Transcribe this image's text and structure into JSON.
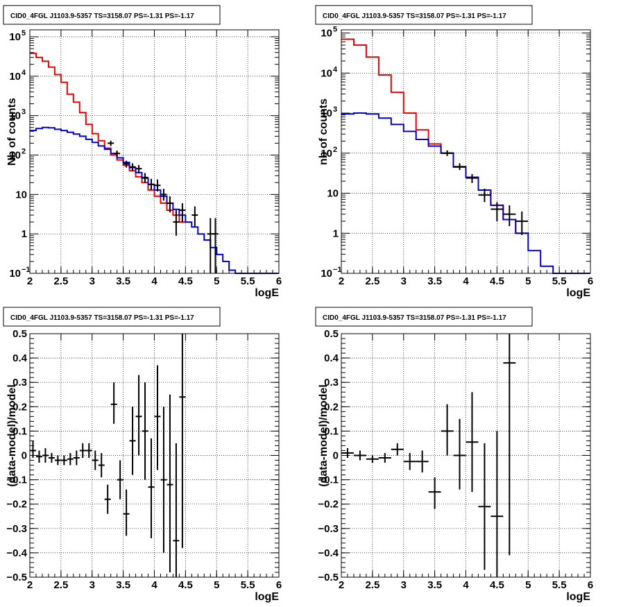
{
  "chart_data": [
    {
      "id": "tl",
      "type": "line",
      "title": "CID0_4FGL J1103.9-5357 TS=3158.07 PS=-1.31 PS=-1.17",
      "xlabel": "logE",
      "ylabel": "Nb of counts",
      "xlim": [
        2,
        6
      ],
      "ylim": [
        0.1,
        150000
      ],
      "yscale": "log",
      "grid": true,
      "x_ticks": [
        "2",
        "2.5",
        "3",
        "3.5",
        "4",
        "4.5",
        "5",
        "5.5",
        "6"
      ],
      "y_ticks": [
        {
          "value": 0.1,
          "label": "10",
          "exp": "−1"
        },
        {
          "value": 1,
          "label": "1",
          "exp": ""
        },
        {
          "value": 10,
          "label": "10",
          "exp": ""
        },
        {
          "value": 100,
          "label": "10",
          "exp": "2"
        },
        {
          "value": 1000,
          "label": "10",
          "exp": "3"
        },
        {
          "value": 10000,
          "label": "10",
          "exp": "4"
        },
        {
          "value": 100000,
          "label": "10",
          "exp": "5"
        }
      ],
      "series": [
        {
          "color": "#ee0000",
          "style": "step",
          "edges": [
            2.0,
            2.1,
            2.2,
            2.3,
            2.4,
            2.5,
            2.6,
            2.7,
            2.8,
            2.9,
            3.0,
            3.1,
            3.2,
            3.3,
            3.4,
            3.5,
            3.6,
            3.7,
            3.8,
            3.9,
            4.0,
            4.1,
            4.2,
            4.3,
            4.4,
            4.5
          ],
          "values": [
            38000,
            30000,
            24000,
            17000,
            11000,
            7000,
            3500,
            2200,
            1200,
            600,
            350,
            230,
            150,
            100,
            75,
            55,
            40,
            28,
            20,
            13,
            9,
            6,
            4,
            3,
            2
          ]
        },
        {
          "color": "#0000cc",
          "style": "step",
          "edges": [
            2.0,
            2.1,
            2.2,
            2.3,
            2.4,
            2.5,
            2.6,
            2.7,
            2.8,
            2.9,
            3.0,
            3.1,
            3.2,
            3.3,
            3.4,
            3.5,
            3.6,
            3.7,
            3.8,
            3.9,
            4.0,
            4.1,
            4.2,
            4.3,
            4.4,
            4.5,
            4.6,
            4.7,
            4.8,
            4.9,
            5.0,
            5.1,
            5.2,
            5.3,
            5.4,
            5.5,
            5.6,
            5.7,
            5.8,
            5.9,
            6.0
          ],
          "values": [
            420,
            470,
            500,
            490,
            450,
            420,
            380,
            340,
            300,
            250,
            210,
            170,
            140,
            110,
            85,
            65,
            48,
            36,
            26,
            18,
            13,
            9,
            6,
            4.2,
            3,
            2,
            1.5,
            1,
            0.7,
            0.45,
            0.3,
            0.2,
            0.12,
            0.1,
            0.1,
            0.1,
            0.1,
            0.1,
            0.1,
            0.1
          ]
        }
      ],
      "points": [
        {
          "x": 3.3,
          "y": 200,
          "dx": 0.05,
          "ylo": 170,
          "yhi": 230
        },
        {
          "x": 3.4,
          "y": 110,
          "dx": 0.05,
          "ylo": 90,
          "yhi": 130
        },
        {
          "x": 3.55,
          "y": 60,
          "dx": 0.05,
          "ylo": 48,
          "yhi": 72
        },
        {
          "x": 3.65,
          "y": 50,
          "dx": 0.05,
          "ylo": 40,
          "yhi": 62
        },
        {
          "x": 3.75,
          "y": 45,
          "dx": 0.05,
          "ylo": 34,
          "yhi": 56
        },
        {
          "x": 3.85,
          "y": 27,
          "dx": 0.05,
          "ylo": 20,
          "yhi": 35
        },
        {
          "x": 3.95,
          "y": 18,
          "dx": 0.05,
          "ylo": 13,
          "yhi": 25
        },
        {
          "x": 4.05,
          "y": 17,
          "dx": 0.05,
          "ylo": 12,
          "yhi": 24
        },
        {
          "x": 4.15,
          "y": 10,
          "dx": 0.05,
          "ylo": 7,
          "yhi": 14
        },
        {
          "x": 4.25,
          "y": 6,
          "dx": 0.05,
          "ylo": 3.5,
          "yhi": 9
        },
        {
          "x": 4.35,
          "y": 2,
          "dx": 0.05,
          "ylo": 0.9,
          "yhi": 4
        },
        {
          "x": 4.45,
          "y": 4,
          "dx": 0.05,
          "ylo": 2,
          "yhi": 6
        },
        {
          "x": 4.65,
          "y": 3,
          "dx": 0.05,
          "ylo": 1.5,
          "yhi": 5
        },
        {
          "x": 4.9,
          "y": 1,
          "dx": 0.05,
          "ylo": 0.1,
          "yhi": 2.5
        },
        {
          "x": 4.98,
          "y": 1,
          "dx": 0.05,
          "ylo": 0.1,
          "yhi": 2.5
        }
      ]
    },
    {
      "id": "tr",
      "type": "line",
      "title": "CID0_4FGL J1103.9-5357 TS=3158.07 PS=-1.31 PS=-1.17",
      "xlabel": "logE",
      "ylabel": "nb of counts",
      "xlim": [
        2,
        6
      ],
      "ylim": [
        0.1,
        120000
      ],
      "yscale": "log",
      "grid": true,
      "x_ticks": [
        "2",
        "2.5",
        "3",
        "3.5",
        "4",
        "4.5",
        "5",
        "5.5",
        "6"
      ],
      "y_ticks": [
        {
          "value": 0.1,
          "label": "10",
          "exp": "−1"
        },
        {
          "value": 1,
          "label": "1",
          "exp": ""
        },
        {
          "value": 10,
          "label": "10",
          "exp": ""
        },
        {
          "value": 100,
          "label": "10",
          "exp": "2"
        },
        {
          "value": 1000,
          "label": "10",
          "exp": "3"
        },
        {
          "value": 10000,
          "label": "10",
          "exp": "4"
        },
        {
          "value": 100000,
          "label": "10",
          "exp": "5"
        }
      ],
      "series": [
        {
          "color": "#ee0000",
          "style": "step",
          "edges": [
            2.0,
            2.2,
            2.4,
            2.6,
            2.8,
            3.0,
            3.2,
            3.4,
            3.6,
            3.8,
            4.0,
            4.2,
            4.4,
            4.6,
            4.8,
            5.0
          ],
          "values": [
            70000,
            50000,
            25000,
            9000,
            3300,
            1000,
            380,
            170,
            100,
            45,
            25,
            12,
            5,
            2.2,
            1
          ]
        },
        {
          "color": "#0000cc",
          "style": "step",
          "edges": [
            2.0,
            2.2,
            2.4,
            2.6,
            2.8,
            3.0,
            3.2,
            3.4,
            3.6,
            3.8,
            4.0,
            4.2,
            4.4,
            4.6,
            4.8,
            5.0,
            5.2,
            5.4,
            5.6,
            5.8,
            6.0
          ],
          "values": [
            950,
            1000,
            950,
            750,
            520,
            350,
            220,
            150,
            100,
            45,
            25,
            12,
            5,
            2.2,
            1,
            0.37,
            0.15,
            0.1,
            0.1,
            0.1
          ]
        }
      ],
      "points": [
        {
          "x": 3.7,
          "y": 100,
          "dx": 0.1,
          "ylo": 85,
          "yhi": 118
        },
        {
          "x": 3.9,
          "y": 46,
          "dx": 0.1,
          "ylo": 38,
          "yhi": 56
        },
        {
          "x": 4.1,
          "y": 24,
          "dx": 0.1,
          "ylo": 18,
          "yhi": 30
        },
        {
          "x": 4.3,
          "y": 9,
          "dx": 0.1,
          "ylo": 6,
          "yhi": 13
        },
        {
          "x": 4.5,
          "y": 4,
          "dx": 0.1,
          "ylo": 2,
          "yhi": 6
        },
        {
          "x": 4.7,
          "y": 3,
          "dx": 0.1,
          "ylo": 1.5,
          "yhi": 5
        },
        {
          "x": 4.9,
          "y": 2,
          "dx": 0.1,
          "ylo": 0.9,
          "yhi": 3.5
        }
      ]
    },
    {
      "id": "bl",
      "type": "scatter",
      "title": "CID0_4FGL J1103.9-5357 TS=3158.07 PS=-1.31 PS=-1.17",
      "xlabel": "logE",
      "ylabel": "(data-model)/model",
      "xlim": [
        2,
        6
      ],
      "ylim": [
        -0.5,
        0.5
      ],
      "yscale": "linear",
      "grid": true,
      "x_ticks": [
        "2",
        "2.5",
        "3",
        "3.5",
        "4",
        "4.5",
        "5",
        "5.5",
        "6"
      ],
      "y_ticks": [
        {
          "value": -0.5,
          "label": "−0.5"
        },
        {
          "value": -0.4,
          "label": "−0.4"
        },
        {
          "value": -0.3,
          "label": "−0.3"
        },
        {
          "value": -0.2,
          "label": "−0.2"
        },
        {
          "value": -0.1,
          "label": "−0.1"
        },
        {
          "value": 0,
          "label": "0"
        },
        {
          "value": 0.1,
          "label": "0.1"
        },
        {
          "value": 0.2,
          "label": "0.2"
        },
        {
          "value": 0.3,
          "label": "0.3"
        },
        {
          "value": 0.4,
          "label": "0.4"
        },
        {
          "value": 0.5,
          "label": "0.5"
        }
      ],
      "points": [
        {
          "x": 2.05,
          "y": 0.02,
          "dx": 0.05,
          "ylo": -0.01,
          "yhi": 0.06
        },
        {
          "x": 2.15,
          "y": -0.005,
          "dx": 0.05,
          "ylo": -0.03,
          "yhi": 0.02
        },
        {
          "x": 2.25,
          "y": 0.0,
          "dx": 0.05,
          "ylo": -0.03,
          "yhi": 0.03
        },
        {
          "x": 2.35,
          "y": -0.01,
          "dx": 0.05,
          "ylo": -0.03,
          "yhi": 0.01
        },
        {
          "x": 2.45,
          "y": -0.02,
          "dx": 0.05,
          "ylo": -0.04,
          "yhi": 0.0
        },
        {
          "x": 2.55,
          "y": -0.02,
          "dx": 0.05,
          "ylo": -0.04,
          "yhi": 0.0
        },
        {
          "x": 2.65,
          "y": -0.015,
          "dx": 0.05,
          "ylo": -0.04,
          "yhi": 0.01
        },
        {
          "x": 2.75,
          "y": -0.01,
          "dx": 0.05,
          "ylo": -0.04,
          "yhi": 0.02
        },
        {
          "x": 2.85,
          "y": 0.02,
          "dx": 0.05,
          "ylo": -0.01,
          "yhi": 0.05
        },
        {
          "x": 2.95,
          "y": 0.02,
          "dx": 0.05,
          "ylo": -0.01,
          "yhi": 0.05
        },
        {
          "x": 3.05,
          "y": -0.02,
          "dx": 0.05,
          "ylo": -0.06,
          "yhi": 0.02
        },
        {
          "x": 3.15,
          "y": -0.04,
          "dx": 0.05,
          "ylo": -0.09,
          "yhi": 0.01
        },
        {
          "x": 3.25,
          "y": -0.18,
          "dx": 0.05,
          "ylo": -0.24,
          "yhi": -0.12
        },
        {
          "x": 3.35,
          "y": 0.21,
          "dx": 0.05,
          "ylo": 0.13,
          "yhi": 0.3
        },
        {
          "x": 3.45,
          "y": -0.1,
          "dx": 0.05,
          "ylo": -0.18,
          "yhi": -0.02
        },
        {
          "x": 3.55,
          "y": -0.24,
          "dx": 0.05,
          "ylo": -0.33,
          "yhi": -0.14
        },
        {
          "x": 3.65,
          "y": 0.06,
          "dx": 0.05,
          "ylo": -0.08,
          "yhi": 0.2
        },
        {
          "x": 3.75,
          "y": 0.16,
          "dx": 0.05,
          "ylo": 0.0,
          "yhi": 0.33
        },
        {
          "x": 3.85,
          "y": 0.1,
          "dx": 0.05,
          "ylo": -0.1,
          "yhi": 0.3
        },
        {
          "x": 3.95,
          "y": -0.13,
          "dx": 0.05,
          "ylo": -0.34,
          "yhi": 0.07
        },
        {
          "x": 4.05,
          "y": 0.16,
          "dx": 0.05,
          "ylo": -0.06,
          "yhi": 0.37
        },
        {
          "x": 4.15,
          "y": -0.1,
          "dx": 0.05,
          "ylo": -0.4,
          "yhi": 0.2
        },
        {
          "x": 4.25,
          "y": -0.12,
          "dx": 0.05,
          "ylo": -0.48,
          "yhi": 0.25
        },
        {
          "x": 4.35,
          "y": -0.35,
          "dx": 0.05,
          "ylo": -0.5,
          "yhi": 0.05
        },
        {
          "x": 4.45,
          "y": 0.24,
          "dx": 0.05,
          "ylo": -0.38,
          "yhi": 0.5
        }
      ]
    },
    {
      "id": "br",
      "type": "scatter",
      "title": "CID0_4FGL J1103.9-5357 TS=3158.07 PS=-1.31 PS=-1.17",
      "xlabel": "logE",
      "ylabel": "(data-model)/model",
      "xlim": [
        2,
        6
      ],
      "ylim": [
        -0.5,
        0.5
      ],
      "yscale": "linear",
      "grid": true,
      "x_ticks": [
        "2",
        "2.5",
        "3",
        "3.5",
        "4",
        "4.5",
        "5",
        "5.5",
        "6"
      ],
      "y_ticks": [
        {
          "value": -0.5,
          "label": "−0.5"
        },
        {
          "value": -0.4,
          "label": "−0.4"
        },
        {
          "value": -0.3,
          "label": "−0.3"
        },
        {
          "value": -0.2,
          "label": "−0.2"
        },
        {
          "value": -0.1,
          "label": "−0.1"
        },
        {
          "value": 0,
          "label": "0"
        },
        {
          "value": 0.1,
          "label": "0.1"
        },
        {
          "value": 0.2,
          "label": "0.2"
        },
        {
          "value": 0.3,
          "label": "0.3"
        },
        {
          "value": 0.4,
          "label": "0.4"
        },
        {
          "value": 0.5,
          "label": "0.5"
        }
      ],
      "points": [
        {
          "x": 2.1,
          "y": 0.01,
          "dx": 0.1,
          "ylo": -0.01,
          "yhi": 0.03
        },
        {
          "x": 2.3,
          "y": 0.0,
          "dx": 0.1,
          "ylo": -0.02,
          "yhi": 0.02
        },
        {
          "x": 2.5,
          "y": -0.015,
          "dx": 0.1,
          "ylo": -0.03,
          "yhi": 0.0
        },
        {
          "x": 2.7,
          "y": -0.01,
          "dx": 0.1,
          "ylo": -0.03,
          "yhi": 0.01
        },
        {
          "x": 2.9,
          "y": 0.025,
          "dx": 0.1,
          "ylo": 0.0,
          "yhi": 0.05
        },
        {
          "x": 3.1,
          "y": -0.025,
          "dx": 0.1,
          "ylo": -0.06,
          "yhi": 0.01
        },
        {
          "x": 3.3,
          "y": -0.025,
          "dx": 0.1,
          "ylo": -0.07,
          "yhi": 0.02
        },
        {
          "x": 3.5,
          "y": -0.15,
          "dx": 0.1,
          "ylo": -0.22,
          "yhi": -0.09
        },
        {
          "x": 3.7,
          "y": 0.1,
          "dx": 0.1,
          "ylo": 0.0,
          "yhi": 0.21
        },
        {
          "x": 3.9,
          "y": 0.0,
          "dx": 0.1,
          "ylo": -0.14,
          "yhi": 0.15
        },
        {
          "x": 4.1,
          "y": 0.055,
          "dx": 0.1,
          "ylo": -0.15,
          "yhi": 0.26
        },
        {
          "x": 4.3,
          "y": -0.21,
          "dx": 0.1,
          "ylo": -0.47,
          "yhi": 0.05
        },
        {
          "x": 4.5,
          "y": -0.25,
          "dx": 0.1,
          "ylo": -0.5,
          "yhi": 0.1
        },
        {
          "x": 4.7,
          "y": 0.38,
          "dx": 0.1,
          "ylo": -0.41,
          "yhi": 0.5
        }
      ]
    }
  ]
}
